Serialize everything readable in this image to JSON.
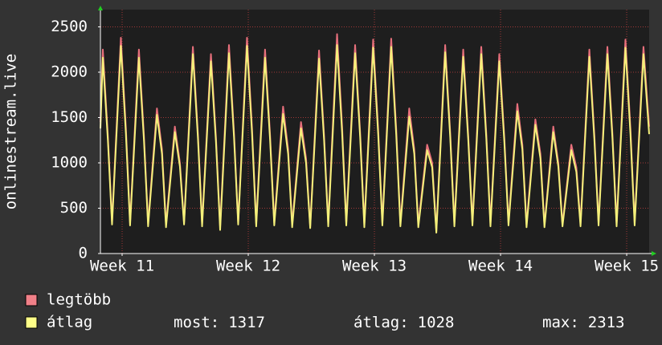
{
  "chart_data": {
    "type": "line",
    "y_label": "onlinestream.live",
    "xlim": [
      10.828,
      15.178
    ],
    "xticks": [
      {
        "value": 11,
        "label": "Week 11"
      },
      {
        "value": 12,
        "label": "Week 12"
      },
      {
        "value": 13,
        "label": "Week 13"
      },
      {
        "value": 14,
        "label": "Week 14"
      },
      {
        "value": 15,
        "label": "Week 15"
      }
    ],
    "ylim": [
      0,
      2690
    ],
    "yticks": [
      0,
      500,
      1000,
      1500,
      2000,
      2500
    ],
    "grid": true,
    "x": [
      10.828,
      10.847,
      10.887,
      10.92,
      10.99,
      11.03,
      11.063,
      11.133,
      11.173,
      11.206,
      11.276,
      11.316,
      11.348,
      11.418,
      11.458,
      11.491,
      11.561,
      11.601,
      11.634,
      11.704,
      11.744,
      11.777,
      11.847,
      11.887,
      11.92,
      11.99,
      12.03,
      12.063,
      12.133,
      12.173,
      12.206,
      12.276,
      12.316,
      12.348,
      12.418,
      12.458,
      12.491,
      12.561,
      12.601,
      12.634,
      12.704,
      12.744,
      12.777,
      12.847,
      12.887,
      12.92,
      12.99,
      13.03,
      13.063,
      13.133,
      13.173,
      13.206,
      13.276,
      13.316,
      13.348,
      13.418,
      13.458,
      13.491,
      13.561,
      13.601,
      13.634,
      13.704,
      13.744,
      13.777,
      13.847,
      13.887,
      13.92,
      13.99,
      14.03,
      14.063,
      14.133,
      14.173,
      14.206,
      14.276,
      14.316,
      14.348,
      14.418,
      14.458,
      14.491,
      14.561,
      14.601,
      14.634,
      14.704,
      14.744,
      14.777,
      14.847,
      14.887,
      14.92,
      14.99,
      15.03,
      15.063,
      15.133,
      15.178
    ],
    "series": [
      {
        "name": "legtöbb",
        "color": "#e8707c",
        "legend_color": "#f08088",
        "values": [
          1450,
          2250,
          1300,
          350,
          2380,
          1380,
          340,
          2250,
          1300,
          330,
          1600,
          1150,
          320,
          1400,
          1000,
          340,
          2280,
          1320,
          330,
          2200,
          1280,
          300,
          2300,
          1330,
          340,
          2380,
          1380,
          330,
          2250,
          1300,
          340,
          1620,
          1150,
          320,
          1450,
          1050,
          300,
          2240,
          1300,
          330,
          2420,
          1400,
          340,
          2300,
          1330,
          320,
          2360,
          1370,
          340,
          2370,
          1370,
          330,
          1600,
          1150,
          320,
          1200,
          1000,
          250,
          2300,
          1330,
          330,
          2250,
          1300,
          340,
          2280,
          1320,
          330,
          2200,
          1280,
          340,
          1650,
          1200,
          320,
          1480,
          1100,
          310,
          1400,
          1000,
          320,
          1200,
          950,
          330,
          2250,
          1300,
          340,
          2280,
          1320,
          330,
          2360,
          1370,
          340,
          2280,
          1400
        ]
      },
      {
        "name": "átlag",
        "color": "#f4f07a",
        "legend_color": "#ffff88",
        "values": [
          1380,
          2160,
          1250,
          320,
          2290,
          1320,
          310,
          2160,
          1250,
          300,
          1530,
          1100,
          290,
          1340,
          960,
          320,
          2200,
          1270,
          300,
          2120,
          1230,
          260,
          2210,
          1280,
          320,
          2290,
          1320,
          300,
          2160,
          1250,
          310,
          1540,
          1100,
          290,
          1380,
          1000,
          280,
          2150,
          1250,
          300,
          2300,
          1330,
          310,
          2210,
          1280,
          290,
          2270,
          1310,
          310,
          2280,
          1310,
          300,
          1510,
          1100,
          290,
          1140,
          950,
          230,
          2220,
          1280,
          300,
          2170,
          1250,
          310,
          2200,
          1270,
          300,
          2120,
          1230,
          310,
          1570,
          1150,
          290,
          1420,
          1050,
          290,
          1340,
          960,
          300,
          1140,
          900,
          300,
          2170,
          1250,
          310,
          2200,
          1270,
          300,
          2270,
          1310,
          310,
          2200,
          1317
        ]
      }
    ],
    "summary": [
      {
        "label": "most:",
        "value": 1317
      },
      {
        "label": "átlag:",
        "value": 1028
      },
      {
        "label": "max:",
        "value": 2313
      }
    ]
  }
}
